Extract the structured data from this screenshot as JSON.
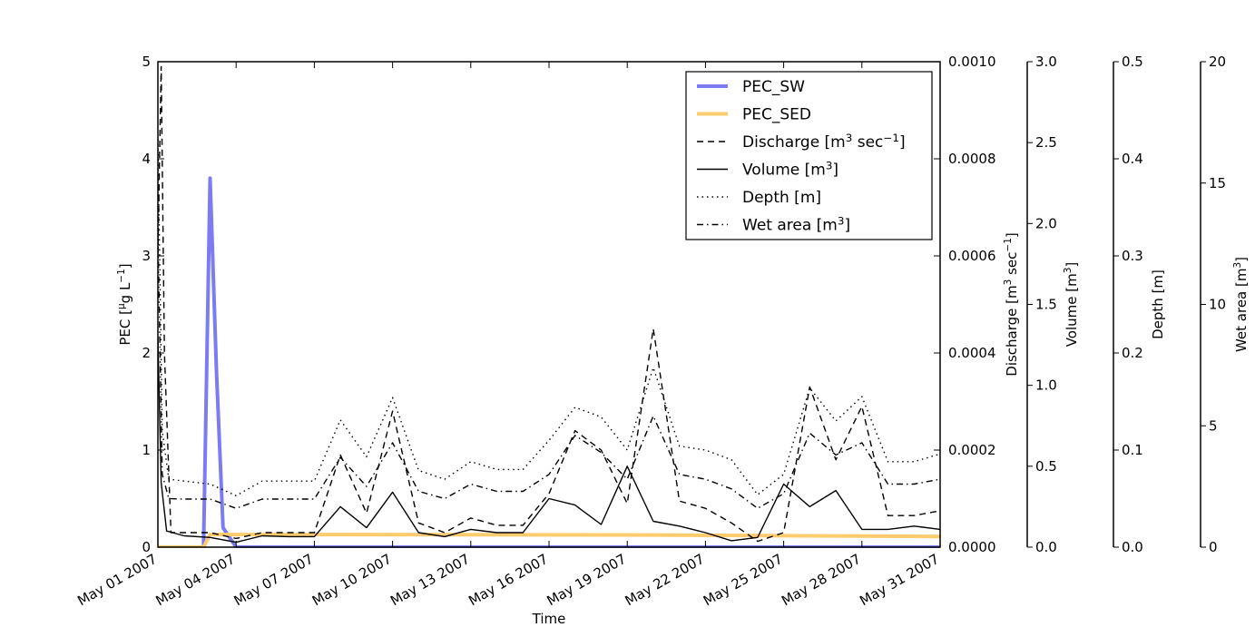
{
  "chart_data": {
    "type": "line",
    "xlabel": "Time",
    "x_ticks": [
      "May 01 2007",
      "May 04 2007",
      "May 07 2007",
      "May 10 2007",
      "May 13 2007",
      "May 16 2007",
      "May 19 2007",
      "May 22 2007",
      "May 25 2007",
      "May 28 2007",
      "May 31 2007"
    ],
    "xlim": [
      "2007-05-01",
      "2007-05-31"
    ],
    "grid": false,
    "legend_position": "top-right",
    "axes": [
      {
        "id": "pec",
        "label": "PEC [μg L⁻¹]",
        "label_parts": [
          "PEC [",
          "μ",
          "g L",
          "−1",
          "]"
        ],
        "ylim": [
          0,
          5
        ],
        "ticks": [
          "0",
          "1",
          "2",
          "3",
          "4",
          "5"
        ]
      },
      {
        "id": "discharge",
        "label": "Discharge [m³ sec⁻¹]",
        "label_parts": [
          "Discharge [m",
          "3",
          " sec",
          "−1",
          "]"
        ],
        "ylim": [
          0,
          0.001
        ],
        "ticks": [
          "0.0000",
          "0.0002",
          "0.0004",
          "0.0006",
          "0.0008",
          "0.0010"
        ]
      },
      {
        "id": "volume",
        "label": "Volume [m³]",
        "label_parts": [
          "Volume [m",
          "3",
          "]"
        ],
        "ylim": [
          0,
          3.0
        ],
        "ticks": [
          "0.0",
          "0.5",
          "1.0",
          "1.5",
          "2.0",
          "2.5",
          "3.0"
        ]
      },
      {
        "id": "depth",
        "label": "Depth [m]",
        "ylim": [
          0,
          0.5
        ],
        "ticks": [
          "0.0",
          "0.1",
          "0.2",
          "0.3",
          "0.4",
          "0.5"
        ]
      },
      {
        "id": "wetarea",
        "label": "Wet area [m³]",
        "label_parts": [
          "Wet area [m",
          "3",
          "]"
        ],
        "ylim": [
          0,
          20
        ],
        "ticks": [
          "0",
          "5",
          "10",
          "15",
          "20"
        ]
      }
    ],
    "series": [
      {
        "name": "PEC_SW",
        "legend_parts": [
          "PEC_SW"
        ],
        "axis": "pec",
        "color": "#7b7bf2",
        "style": "solid",
        "width": 4,
        "points": [
          [
            "2007-05-01",
            0
          ],
          [
            "2007-05-02 18:00",
            0
          ],
          [
            "2007-05-03 00:00",
            3.8
          ],
          [
            "2007-05-03 06:00",
            1.8
          ],
          [
            "2007-05-03 12:00",
            0.2
          ],
          [
            "2007-05-04",
            0
          ],
          [
            "2007-05-31",
            0
          ]
        ]
      },
      {
        "name": "PEC_SED",
        "legend_parts": [
          "PEC_SED"
        ],
        "axis": "pec",
        "color": "#fecb6e",
        "style": "solid",
        "width": 4,
        "points": [
          [
            "2007-05-01",
            0
          ],
          [
            "2007-05-02 18:00",
            0
          ],
          [
            "2007-05-03",
            0.13
          ],
          [
            "2007-05-08",
            0.13
          ],
          [
            "2007-05-20",
            0.125
          ],
          [
            "2007-05-31",
            0.11
          ]
        ]
      },
      {
        "name": "Discharge [m³ sec⁻¹]",
        "legend_parts": [
          "Discharge [m",
          "3",
          " sec",
          "−1",
          "]"
        ],
        "axis": "discharge",
        "color": "#000000",
        "style": "dashed",
        "width": 1.4,
        "points": [
          [
            "2007-05-01",
            0.0006
          ],
          [
            "2007-05-01 03:00",
            0.00099
          ],
          [
            "2007-05-01 06:00",
            0.0004
          ],
          [
            "2007-05-01 12:00",
            3e-05
          ],
          [
            "2007-05-02",
            3e-05
          ],
          [
            "2007-05-03",
            3e-05
          ],
          [
            "2007-05-04",
            1.8e-05
          ],
          [
            "2007-05-05",
            3e-05
          ],
          [
            "2007-05-06",
            3e-05
          ],
          [
            "2007-05-07",
            3e-05
          ],
          [
            "2007-05-08",
            0.00019
          ],
          [
            "2007-05-09",
            7e-05
          ],
          [
            "2007-05-10",
            0.00028
          ],
          [
            "2007-05-11",
            5e-05
          ],
          [
            "2007-05-12",
            3e-05
          ],
          [
            "2007-05-13",
            6e-05
          ],
          [
            "2007-05-14",
            4.5e-05
          ],
          [
            "2007-05-15",
            4.5e-05
          ],
          [
            "2007-05-16",
            0.00011
          ],
          [
            "2007-05-17",
            0.00024
          ],
          [
            "2007-05-18",
            0.0002
          ],
          [
            "2007-05-19",
            9e-05
          ],
          [
            "2007-05-20",
            0.00045
          ],
          [
            "2007-05-21",
            9.5e-05
          ],
          [
            "2007-05-22",
            8e-05
          ],
          [
            "2007-05-23",
            5e-05
          ],
          [
            "2007-05-24",
            1.2e-05
          ],
          [
            "2007-05-25",
            3e-05
          ],
          [
            "2007-05-26",
            0.00033
          ],
          [
            "2007-05-27",
            0.00018
          ],
          [
            "2007-05-28",
            0.00029
          ],
          [
            "2007-05-29",
            6.5e-05
          ],
          [
            "2007-05-30",
            6.5e-05
          ],
          [
            "2007-05-31",
            7.5e-05
          ],
          [
            "2007-05-31 12:00",
            7e-05
          ]
        ]
      },
      {
        "name": "Volume [m³]",
        "legend_parts": [
          "Volume [m",
          "3",
          "]"
        ],
        "axis": "volume",
        "color": "#000000",
        "style": "solid",
        "width": 1.4,
        "points": [
          [
            "2007-05-01",
            1.3
          ],
          [
            "2007-05-01 03:00",
            0.4
          ],
          [
            "2007-05-01 08:00",
            0.1
          ],
          [
            "2007-05-02",
            0.07
          ],
          [
            "2007-05-03",
            0.06
          ],
          [
            "2007-05-04",
            0.03
          ],
          [
            "2007-05-05",
            0.07
          ],
          [
            "2007-05-06",
            0.065
          ],
          [
            "2007-05-07",
            0.065
          ],
          [
            "2007-05-08",
            0.25
          ],
          [
            "2007-05-09",
            0.12
          ],
          [
            "2007-05-10",
            0.34
          ],
          [
            "2007-05-11",
            0.09
          ],
          [
            "2007-05-12",
            0.065
          ],
          [
            "2007-05-13",
            0.11
          ],
          [
            "2007-05-14",
            0.09
          ],
          [
            "2007-05-15",
            0.09
          ],
          [
            "2007-05-16",
            0.3
          ],
          [
            "2007-05-17",
            0.26
          ],
          [
            "2007-05-18",
            0.14
          ],
          [
            "2007-05-19",
            0.5
          ],
          [
            "2007-05-20",
            0.16
          ],
          [
            "2007-05-21",
            0.13
          ],
          [
            "2007-05-22",
            0.09
          ],
          [
            "2007-05-23",
            0.04
          ],
          [
            "2007-05-24",
            0.06
          ],
          [
            "2007-05-25",
            0.39
          ],
          [
            "2007-05-26",
            0.25
          ],
          [
            "2007-05-27",
            0.35
          ],
          [
            "2007-05-28",
            0.11
          ],
          [
            "2007-05-29",
            0.11
          ],
          [
            "2007-05-30",
            0.13
          ],
          [
            "2007-05-31",
            0.11
          ]
        ]
      },
      {
        "name": "Depth [m]",
        "legend_parts": [
          "Depth [m]"
        ],
        "axis": "depth",
        "color": "#000000",
        "style": "dotted",
        "width": 1.4,
        "points": [
          [
            "2007-05-01",
            0.42
          ],
          [
            "2007-05-01 04:00",
            0.12
          ],
          [
            "2007-05-01 10:00",
            0.07
          ],
          [
            "2007-05-02",
            0.068
          ],
          [
            "2007-05-03",
            0.065
          ],
          [
            "2007-05-04",
            0.053
          ],
          [
            "2007-05-05",
            0.068
          ],
          [
            "2007-05-06",
            0.068
          ],
          [
            "2007-05-07",
            0.068
          ],
          [
            "2007-05-08",
            0.131
          ],
          [
            "2007-05-09",
            0.093
          ],
          [
            "2007-05-10",
            0.154
          ],
          [
            "2007-05-11",
            0.079
          ],
          [
            "2007-05-12",
            0.07
          ],
          [
            "2007-05-13",
            0.088
          ],
          [
            "2007-05-14",
            0.08
          ],
          [
            "2007-05-15",
            0.08
          ],
          [
            "2007-05-16",
            0.11
          ],
          [
            "2007-05-17",
            0.144
          ],
          [
            "2007-05-18",
            0.134
          ],
          [
            "2007-05-19",
            0.1
          ],
          [
            "2007-05-20",
            0.185
          ],
          [
            "2007-05-21",
            0.104
          ],
          [
            "2007-05-22",
            0.1
          ],
          [
            "2007-05-23",
            0.09
          ],
          [
            "2007-05-24",
            0.054
          ],
          [
            "2007-05-25",
            0.075
          ],
          [
            "2007-05-26",
            0.164
          ],
          [
            "2007-05-27",
            0.13
          ],
          [
            "2007-05-28",
            0.155
          ],
          [
            "2007-05-29",
            0.088
          ],
          [
            "2007-05-30",
            0.088
          ],
          [
            "2007-05-31",
            0.096
          ],
          [
            "2007-05-31 12:00",
            0.093
          ]
        ]
      },
      {
        "name": "Wet area [m³]",
        "legend_parts": [
          "Wet area [m",
          "3",
          "]"
        ],
        "axis": "wetarea",
        "color": "#000000",
        "style": "dashdot",
        "width": 1.4,
        "points": [
          [
            "2007-05-01",
            13
          ],
          [
            "2007-05-01 04:00",
            3
          ],
          [
            "2007-05-01 10:00",
            2.0
          ],
          [
            "2007-05-02",
            1.98
          ],
          [
            "2007-05-03",
            1.98
          ],
          [
            "2007-05-04",
            1.6
          ],
          [
            "2007-05-05",
            1.98
          ],
          [
            "2007-05-06",
            1.98
          ],
          [
            "2007-05-07",
            1.98
          ],
          [
            "2007-05-08",
            3.7
          ],
          [
            "2007-05-09",
            2.5
          ],
          [
            "2007-05-10",
            4.3
          ],
          [
            "2007-05-11",
            2.3
          ],
          [
            "2007-05-12",
            2.0
          ],
          [
            "2007-05-13",
            2.6
          ],
          [
            "2007-05-14",
            2.3
          ],
          [
            "2007-05-15",
            2.3
          ],
          [
            "2007-05-16",
            3.0
          ],
          [
            "2007-05-17",
            4.6
          ],
          [
            "2007-05-18",
            3.9
          ],
          [
            "2007-05-19",
            2.8
          ],
          [
            "2007-05-20",
            5.4
          ],
          [
            "2007-05-21",
            3.0
          ],
          [
            "2007-05-22",
            2.8
          ],
          [
            "2007-05-23",
            2.4
          ],
          [
            "2007-05-24",
            1.6
          ],
          [
            "2007-05-25",
            2.2
          ],
          [
            "2007-05-26",
            4.7
          ],
          [
            "2007-05-27",
            3.8
          ],
          [
            "2007-05-28",
            4.3
          ],
          [
            "2007-05-29",
            2.6
          ],
          [
            "2007-05-30",
            2.6
          ],
          [
            "2007-05-31",
            2.8
          ],
          [
            "2007-05-31 12:00",
            2.7
          ]
        ]
      }
    ]
  }
}
